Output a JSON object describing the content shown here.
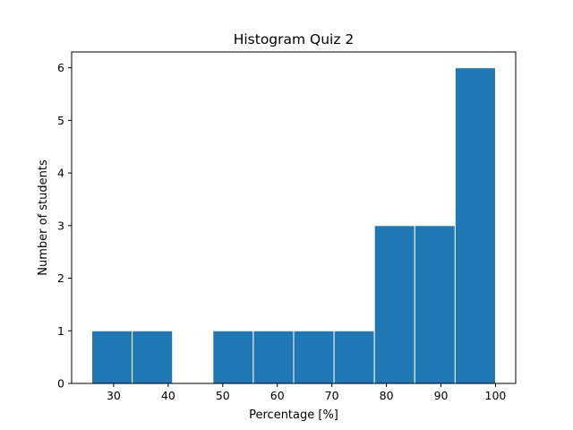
{
  "chart_data": {
    "type": "bar",
    "title": "Histogram Quiz 2",
    "xlabel": "Percentage [%]",
    "ylabel": "Number of students",
    "bins": [
      {
        "start": 26.0,
        "end": 33.4,
        "count": 1
      },
      {
        "start": 33.4,
        "end": 40.8,
        "count": 1
      },
      {
        "start": 40.8,
        "end": 48.2,
        "count": 0
      },
      {
        "start": 48.2,
        "end": 55.6,
        "count": 1
      },
      {
        "start": 55.6,
        "end": 63.0,
        "count": 1
      },
      {
        "start": 63.0,
        "end": 70.4,
        "count": 1
      },
      {
        "start": 70.4,
        "end": 77.8,
        "count": 1
      },
      {
        "start": 77.8,
        "end": 85.2,
        "count": 3
      },
      {
        "start": 85.2,
        "end": 92.6,
        "count": 3
      },
      {
        "start": 92.6,
        "end": 100.0,
        "count": 6
      }
    ],
    "xlim": [
      22.3,
      103.7
    ],
    "ylim": [
      0,
      6.3
    ],
    "xticks": [
      30,
      40,
      50,
      60,
      70,
      80,
      90,
      100
    ],
    "yticks": [
      0,
      1,
      2,
      3,
      4,
      5,
      6
    ],
    "bar_color": "#1f77b4",
    "edge_color": "#ffffff",
    "grid": false,
    "legend": "none"
  }
}
